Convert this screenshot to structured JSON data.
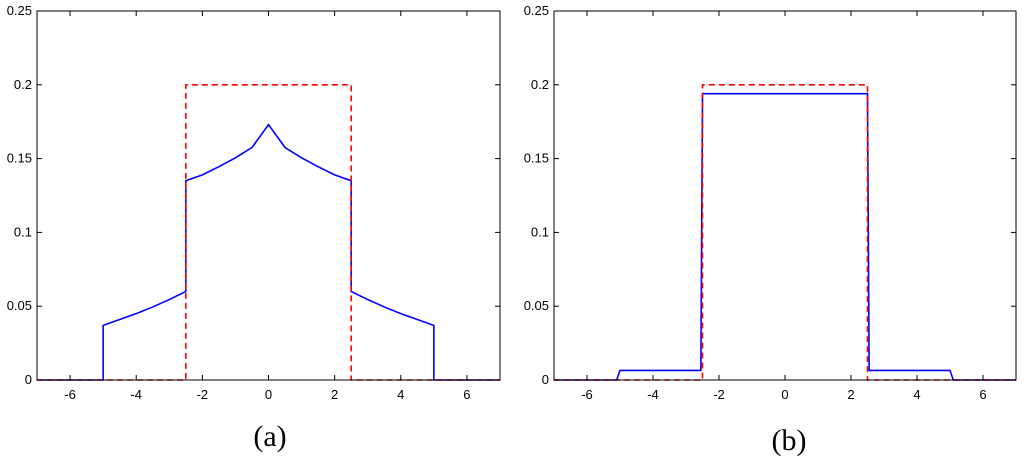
{
  "chart_data": [
    {
      "type": "line",
      "panel_label": "(a)",
      "xlim": [
        -7,
        7
      ],
      "ylim": [
        0,
        0.25
      ],
      "xticks": [
        -6,
        -4,
        -2,
        0,
        2,
        4,
        6
      ],
      "yticks": [
        0,
        0.05,
        0.1,
        0.15,
        0.2,
        0.25
      ],
      "xtick_labels": [
        "-6",
        "-4",
        "-2",
        "0",
        "2",
        "4",
        "6"
      ],
      "ytick_labels": [
        "0",
        "0.05",
        "0.1",
        "0.15",
        "0.2",
        "0.25"
      ],
      "grid": false,
      "series": [
        {
          "color": "#0000ff",
          "style": "solid",
          "points": [
            [
              -7,
              0
            ],
            [
              -5,
              0
            ],
            [
              -5,
              0.037
            ],
            [
              -4.5,
              0.041
            ],
            [
              -4,
              0.045
            ],
            [
              -3.5,
              0.0495
            ],
            [
              -3,
              0.0545
            ],
            [
              -2.5,
              0.06
            ],
            [
              -2.5,
              0.135
            ],
            [
              -2,
              0.139
            ],
            [
              -1.5,
              0.1445
            ],
            [
              -1,
              0.1505
            ],
            [
              -0.5,
              0.1575
            ],
            [
              0,
              0.173
            ],
            [
              0.5,
              0.1575
            ],
            [
              1,
              0.1505
            ],
            [
              1.5,
              0.1445
            ],
            [
              2,
              0.139
            ],
            [
              2.5,
              0.135
            ],
            [
              2.5,
              0.06
            ],
            [
              3,
              0.0545
            ],
            [
              3.5,
              0.0495
            ],
            [
              4,
              0.045
            ],
            [
              4.5,
              0.041
            ],
            [
              5,
              0.037
            ],
            [
              5,
              0
            ],
            [
              7,
              0
            ]
          ]
        },
        {
          "color": "#ff0000",
          "style": "dashed",
          "points": [
            [
              -7,
              0
            ],
            [
              -2.5,
              0
            ],
            [
              -2.5,
              0.2
            ],
            [
              2.5,
              0.2
            ],
            [
              2.5,
              0
            ],
            [
              7,
              0
            ]
          ]
        }
      ]
    },
    {
      "type": "line",
      "panel_label": "(b)",
      "xlim": [
        -7,
        7
      ],
      "ylim": [
        0,
        0.25
      ],
      "xticks": [
        -6,
        -4,
        -2,
        0,
        2,
        4,
        6
      ],
      "yticks": [
        0,
        0.05,
        0.1,
        0.15,
        0.2,
        0.25
      ],
      "xtick_labels": [
        "-6",
        "-4",
        "-2",
        "0",
        "2",
        "4",
        "6"
      ],
      "ytick_labels": [
        "0",
        "0.05",
        "0.1",
        "0.15",
        "0.2",
        "0.25"
      ],
      "grid": false,
      "series": [
        {
          "color": "#0000ff",
          "style": "solid",
          "points": [
            [
              -7,
              0
            ],
            [
              -5.1,
              0
            ],
            [
              -5,
              0.0065
            ],
            [
              -2.55,
              0.0065
            ],
            [
              -2.5,
              0.194
            ],
            [
              2.5,
              0.194
            ],
            [
              2.55,
              0.0065
            ],
            [
              5,
              0.0065
            ],
            [
              5.1,
              0
            ],
            [
              7,
              0
            ]
          ]
        },
        {
          "color": "#ff0000",
          "style": "dashed",
          "points": [
            [
              -7,
              0
            ],
            [
              -2.5,
              0
            ],
            [
              -2.5,
              0.2
            ],
            [
              2.5,
              0.2
            ],
            [
              2.5,
              0
            ],
            [
              7,
              0
            ]
          ]
        }
      ]
    }
  ]
}
